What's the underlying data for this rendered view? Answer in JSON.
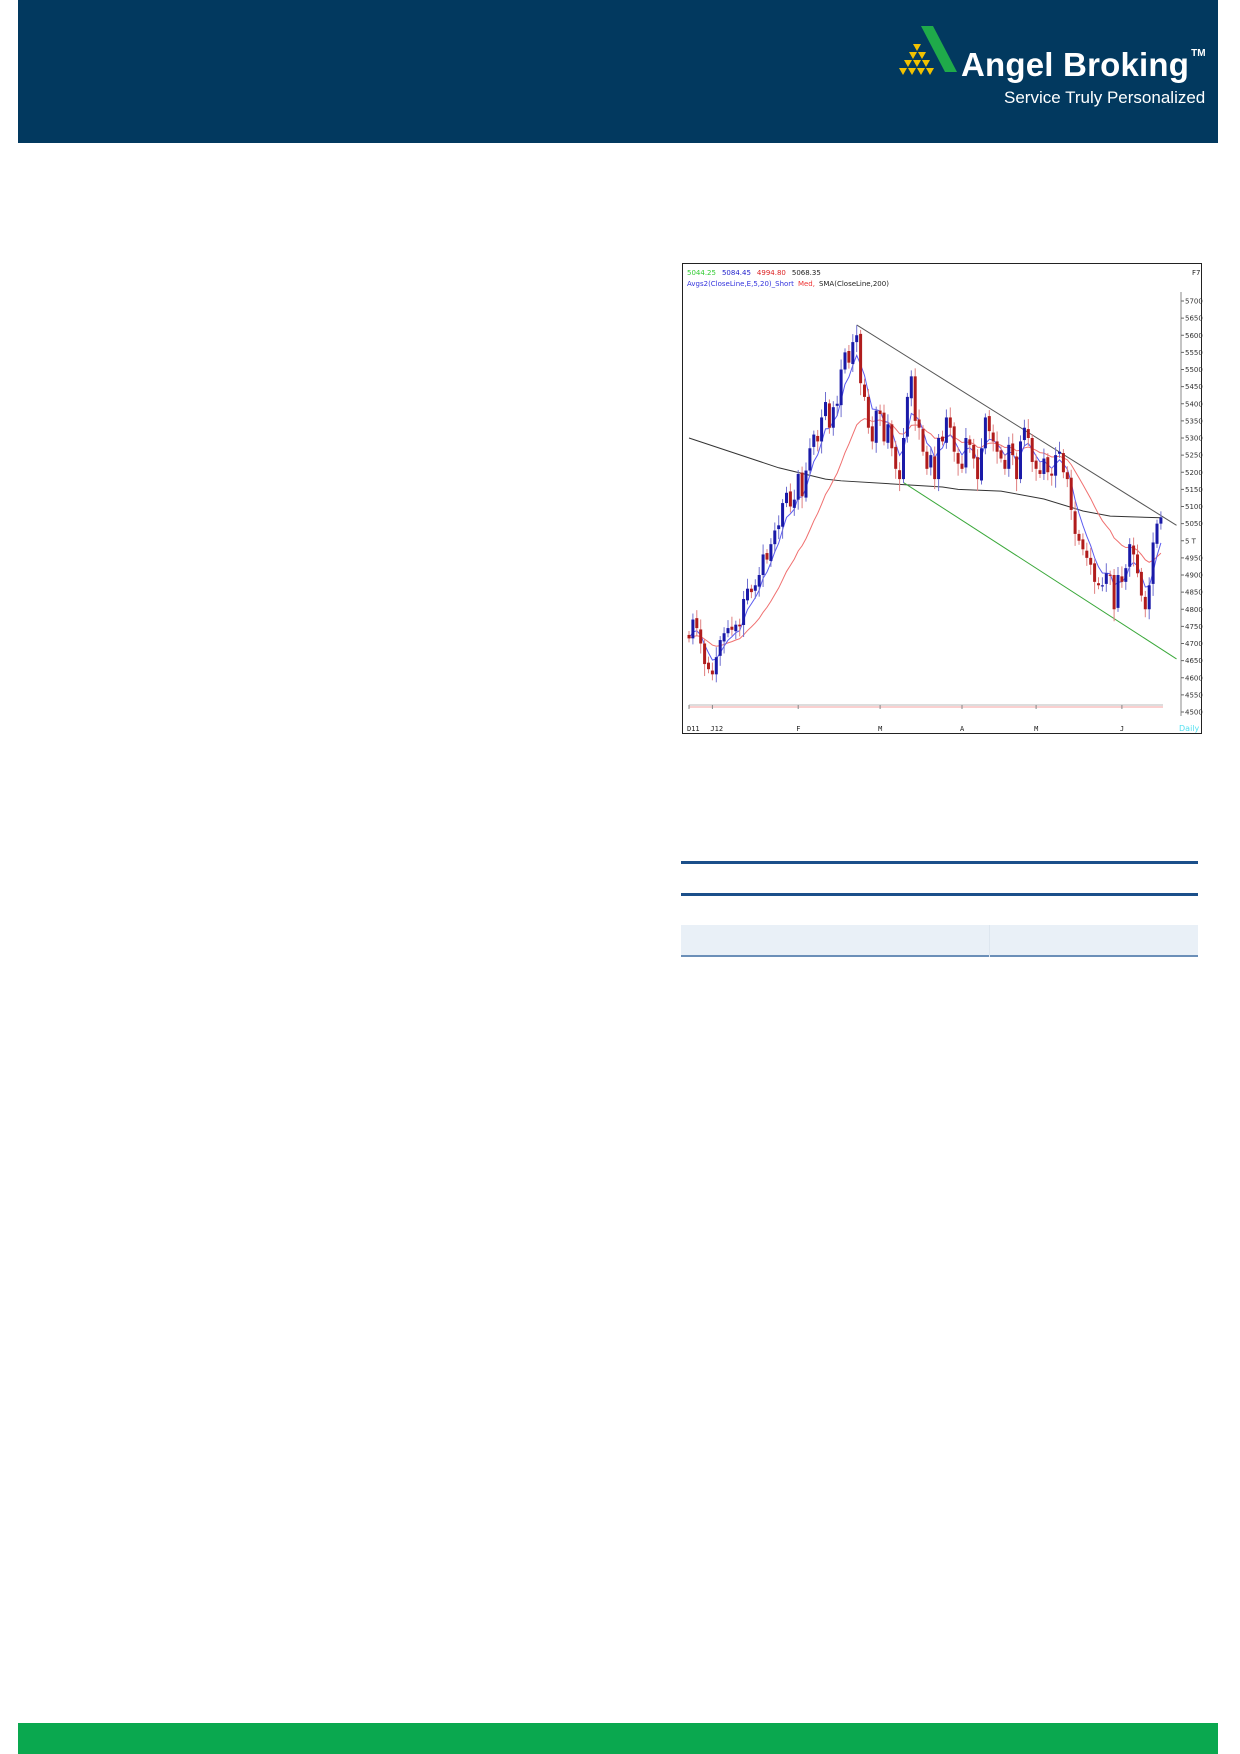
{
  "header": {
    "brand": "Angel Broking",
    "trademark": "TM",
    "tagline": "Service Truly Personalized",
    "colors": {
      "background": "#02395f",
      "logo_green": "#1faa4a",
      "logo_gold": "#f2c200"
    }
  },
  "chart_data": {
    "type": "candlestick",
    "legend": {
      "open": "5044.25",
      "high": "5084.45",
      "low": "4994.80",
      "close": "5068.35",
      "indicator_main": "Avgs2(CloseLine,E,5,20)_Short",
      "indicator_med": "Med,",
      "indicator_sma": "SMA(CloseLine,200)"
    },
    "corner_label": "F7",
    "period_label": "Daily",
    "ylim": [
      4500,
      5700
    ],
    "y_ticks": [
      "5700",
      "5650",
      "5600",
      "5550",
      "5500",
      "5450",
      "5400",
      "5350",
      "5300",
      "5250",
      "5200",
      "5150",
      "5100",
      "5050",
      "5 T",
      "4950",
      "4900",
      "4850",
      "4800",
      "4750",
      "4700",
      "4650",
      "4600",
      "4550",
      "4500"
    ],
    "x_ticks": [
      {
        "label": "D11",
        "index": 0
      },
      {
        "label": "J12",
        "index": 6
      },
      {
        "label": "F",
        "index": 28
      },
      {
        "label": "M",
        "index": 49
      },
      {
        "label": "A",
        "index": 70
      },
      {
        "label": "M",
        "index": 89
      },
      {
        "label": "J",
        "index": 111
      }
    ],
    "close": [
      4715,
      4770,
      4745,
      4700,
      4640,
      4625,
      4610,
      4660,
      4710,
      4730,
      4745,
      4740,
      4755,
      4750,
      4830,
      4860,
      4850,
      4870,
      4900,
      4960,
      4945,
      4990,
      5030,
      5045,
      5110,
      5140,
      5100,
      5120,
      5195,
      5130,
      5205,
      5270,
      5310,
      5290,
      5360,
      5405,
      5330,
      5390,
      5400,
      5500,
      5550,
      5520,
      5580,
      5600,
      5460,
      5420,
      5330,
      5290,
      5380,
      5370,
      5290,
      5340,
      5270,
      5210,
      5180,
      5300,
      5420,
      5480,
      5350,
      5330,
      5260,
      5210,
      5250,
      5180,
      5300,
      5290,
      5360,
      5330,
      5260,
      5225,
      5210,
      5300,
      5280,
      5240,
      5180,
      5270,
      5360,
      5320,
      5290,
      5260,
      5240,
      5210,
      5280,
      5250,
      5180,
      5290,
      5330,
      5300,
      5230,
      5210,
      5195,
      5240,
      5200,
      5190,
      5250,
      5260,
      5200,
      5180,
      5090,
      5020,
      5000,
      4975,
      4950,
      4930,
      4880,
      4870,
      4870,
      4905,
      4900,
      4800,
      4900,
      4880,
      4920,
      4990,
      4960,
      4905,
      4840,
      4800,
      4870,
      4995,
      5050,
      5068.35
    ],
    "sma200": [
      [
        0,
        5300
      ],
      [
        23,
        5213
      ],
      [
        35,
        5180
      ],
      [
        39,
        5175
      ],
      [
        65,
        5157
      ],
      [
        69,
        5150
      ],
      [
        80,
        5145
      ],
      [
        91,
        5122
      ],
      [
        101,
        5087
      ],
      [
        108,
        5072
      ],
      [
        121,
        5067
      ]
    ],
    "trendlines": {
      "resistance": [
        [
          43,
          5630
        ],
        [
          125,
          5045
        ]
      ],
      "support": [
        [
          55,
          5170
        ],
        [
          125,
          4655
        ]
      ]
    },
    "colors": {
      "up": "#1a1aa8",
      "down": "#b01c1c",
      "ema_short": "#5b5bf0",
      "ema_med": "#f07070",
      "sma": "#333333",
      "resistance": "#555555",
      "support": "#3aa83a"
    }
  },
  "table": {
    "rows": 3
  },
  "footer": {
    "color": "#0aa84f"
  }
}
